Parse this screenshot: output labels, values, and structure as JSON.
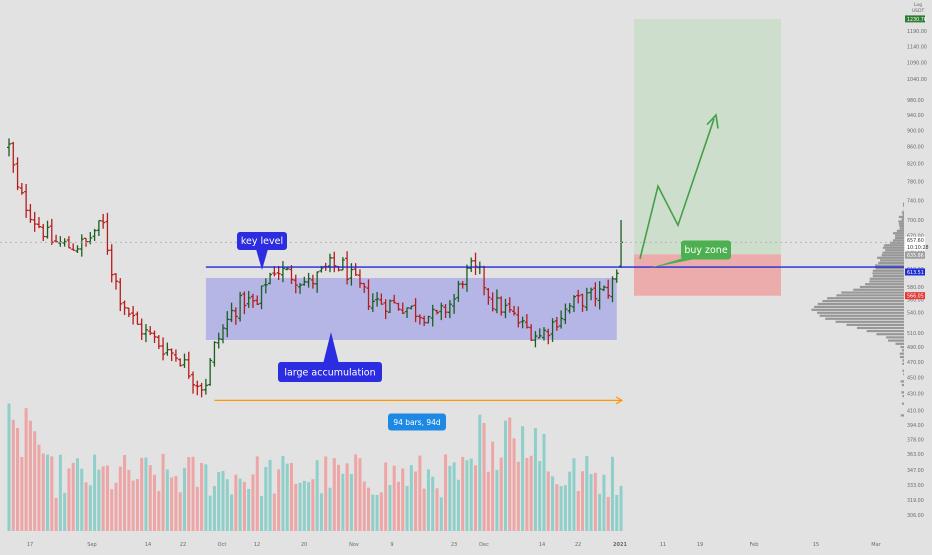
{
  "chart_data": {
    "type": "ohlc",
    "y_axis": {
      "header_lines": [
        "Log",
        "USDT"
      ],
      "ticks": [
        1190.0,
        1140.0,
        1090.0,
        1040.0,
        980.0,
        940.0,
        900.0,
        860.0,
        820.0,
        780.0,
        740.0,
        700.0,
        670.0,
        640.0,
        610.0,
        580.0,
        560.0,
        540.0,
        510.0,
        490.0,
        470.0,
        450.0,
        430.0,
        410.0,
        394.0,
        378.0,
        363.0,
        347.0,
        333.0,
        319.0,
        306.0
      ],
      "scale": "log"
    },
    "x_axis": {
      "ticks": [
        "17",
        "Sep",
        "14",
        "22",
        "Oct",
        "12",
        "20",
        "Nov",
        "9",
        "23",
        "Dec",
        "14",
        "22",
        "2021",
        "11",
        "19",
        "Feb",
        "15",
        "Mar"
      ]
    },
    "price_labels": [
      {
        "value": "1230.76",
        "color": "#2e7d32"
      },
      {
        "value": "657.60",
        "color": "#ffffff"
      },
      {
        "value": "10:10:28",
        "color": "#ffffff"
      },
      {
        "value": "635.86",
        "color": "#bbbbbb"
      },
      {
        "value": "613.51",
        "color": "#1f2bd6"
      },
      {
        "value": "566.05",
        "color": "#e53935"
      }
    ],
    "annotations": {
      "key_level": "key level",
      "large_accumulation": "large accumulation",
      "buy_zone": "buy zone",
      "range_measure": "94 bars, 94d"
    },
    "colors": {
      "up": "#1b5e20",
      "down": "#b71c1c",
      "key_level_line": "#1f2bd6",
      "accumulation_box": "#8f8fea",
      "range_arrow": "#ff9800",
      "target_box": "#a5d6a7",
      "stop_box": "#ef9a9a",
      "projection": "#43a047",
      "vol_up": "#80cbc4",
      "vol_down": "#ef9a9a"
    },
    "grid": false,
    "legend": "none"
  }
}
